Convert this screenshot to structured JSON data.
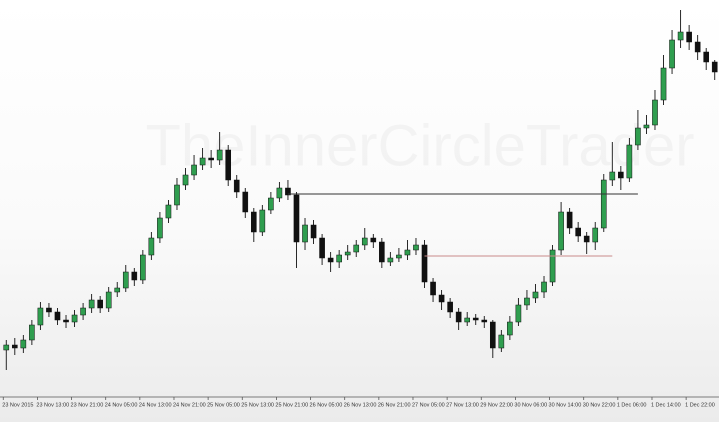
{
  "chart_data": {
    "type": "candlestick",
    "watermark": "TheInnerCircleTrader",
    "categories": [
      "23 Nov 2015",
      null,
      null,
      null,
      "23 Nov 13:00",
      null,
      null,
      null,
      "23 Nov 21:00",
      null,
      null,
      null,
      "24 Nov 05:00",
      null,
      null,
      null,
      "24 Nov 13:00",
      null,
      null,
      null,
      "24 Nov 21:00",
      null,
      null,
      null,
      "25 Nov 05:00",
      null,
      null,
      null,
      "25 Nov 13:00",
      null,
      null,
      null,
      "25 Nov 21:00",
      null,
      null,
      null,
      "26 Nov 05:00",
      null,
      null,
      null,
      "26 Nov 13:00",
      null,
      null,
      null,
      "26 Nov 21:00",
      null,
      null,
      null,
      "27 Nov 05:00",
      null,
      null,
      null,
      "27 Nov 13:00",
      null,
      null,
      null,
      "29 Nov 22:00",
      null,
      null,
      null,
      "30 Nov 06:00",
      null,
      null,
      null,
      "30 Nov 14:00",
      null,
      null,
      null,
      "30 Nov 22:00",
      null,
      null,
      null,
      "1 Dec 06:00",
      null,
      null,
      null,
      "1 Dec 14:00",
      null,
      null,
      null,
      "1 Dec 22:00",
      null,
      null,
      null
    ],
    "open": [
      50,
      55,
      52,
      60,
      75,
      92,
      88,
      80,
      78,
      85,
      92,
      100,
      92,
      108,
      112,
      128,
      120,
      145,
      162,
      182,
      195,
      215,
      225,
      235,
      242,
      240,
      250,
      220,
      208,
      188,
      168,
      190,
      202,
      212,
      205,
      158,
      175,
      162,
      142,
      138,
      145,
      148,
      155,
      162,
      158,
      138,
      142,
      145,
      150,
      155,
      118,
      105,
      98,
      88,
      78,
      82,
      80,
      78,
      52,
      65,
      78,
      95,
      102,
      108,
      118,
      150,
      188,
      172,
      164,
      158,
      172,
      220,
      228,
      222,
      255,
      272,
      275,
      300,
      332,
      360,
      368,
      358,
      348,
      338
    ],
    "high": [
      60,
      62,
      65,
      80,
      98,
      97,
      92,
      85,
      90,
      97,
      106,
      104,
      113,
      118,
      135,
      132,
      150,
      168,
      188,
      200,
      222,
      232,
      245,
      252,
      250,
      268,
      255,
      225,
      212,
      192,
      195,
      208,
      218,
      220,
      208,
      182,
      180,
      166,
      148,
      150,
      155,
      160,
      172,
      166,
      162,
      148,
      152,
      160,
      162,
      160,
      122,
      110,
      102,
      92,
      88,
      86,
      84,
      80,
      70,
      84,
      102,
      110,
      116,
      124,
      155,
      198,
      192,
      178,
      168,
      178,
      226,
      258,
      234,
      262,
      290,
      285,
      310,
      345,
      370,
      390,
      375,
      365,
      352,
      340
    ],
    "low": [
      30,
      45,
      47,
      55,
      70,
      83,
      75,
      72,
      73,
      80,
      87,
      87,
      88,
      103,
      108,
      114,
      116,
      140,
      157,
      177,
      190,
      210,
      220,
      230,
      232,
      235,
      214,
      202,
      182,
      158,
      164,
      186,
      198,
      200,
      132,
      150,
      156,
      135,
      128,
      132,
      140,
      143,
      150,
      152,
      132,
      134,
      138,
      140,
      145,
      112,
      98,
      90,
      82,
      70,
      74,
      75,
      72,
      42,
      48,
      60,
      74,
      90,
      97,
      102,
      114,
      145,
      166,
      158,
      146,
      150,
      168,
      214,
      210,
      218,
      250,
      266,
      270,
      295,
      326,
      352,
      350,
      340,
      330,
      320
    ],
    "close": [
      55,
      52,
      60,
      75,
      92,
      88,
      80,
      78,
      85,
      92,
      100,
      92,
      108,
      112,
      128,
      120,
      145,
      162,
      182,
      195,
      215,
      225,
      235,
      242,
      240,
      250,
      220,
      208,
      188,
      168,
      190,
      202,
      212,
      205,
      158,
      175,
      162,
      142,
      138,
      145,
      148,
      155,
      162,
      158,
      138,
      142,
      145,
      150,
      155,
      118,
      105,
      98,
      88,
      78,
      82,
      80,
      78,
      52,
      65,
      78,
      95,
      102,
      108,
      118,
      150,
      188,
      172,
      164,
      158,
      172,
      220,
      228,
      222,
      255,
      272,
      275,
      300,
      332,
      360,
      368,
      358,
      348,
      338,
      328
    ],
    "up_color": "#2f9e4f",
    "down_color": "#111111",
    "ylim": [
      5,
      400
    ],
    "levels": [
      {
        "value": 206,
        "start": 33,
        "end": 74,
        "color": "#333333"
      },
      {
        "value": 144,
        "start": 49,
        "end": 71,
        "color": "#c98a8a"
      }
    ]
  }
}
